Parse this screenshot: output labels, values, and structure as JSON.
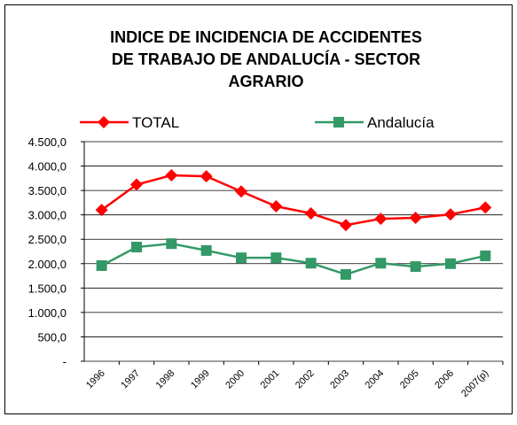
{
  "chart_data": {
    "type": "line",
    "title_lines": [
      "INDICE DE INCIDENCIA DE ACCIDENTES",
      "DE TRABAJO DE ANDALUCÍA - SECTOR",
      "AGRARIO"
    ],
    "categories": [
      "1996",
      "1997",
      "1998",
      "1999",
      "2000",
      "2001",
      "2002",
      "2003",
      "2004",
      "2005",
      "2006",
      "2007(p)"
    ],
    "series": [
      {
        "name": "TOTAL",
        "color": "#ff0000",
        "marker": "diamond",
        "values": [
          3100,
          3620,
          3810,
          3790,
          3480,
          3175,
          3030,
          2790,
          2920,
          2940,
          3010,
          3150
        ]
      },
      {
        "name": "Andalucía",
        "color": "#339966",
        "marker": "square",
        "values": [
          1960,
          2340,
          2410,
          2270,
          2120,
          2120,
          2010,
          1780,
          2010,
          1940,
          2000,
          2160
        ]
      }
    ],
    "ylim": [
      0,
      4500
    ],
    "yticks": [
      {
        "value": 0,
        "label": "-"
      },
      {
        "value": 500,
        "label": "500,0"
      },
      {
        "value": 1000,
        "label": "1.000,0"
      },
      {
        "value": 1500,
        "label": "1.500,0"
      },
      {
        "value": 2000,
        "label": "2.000,0"
      },
      {
        "value": 2500,
        "label": "2.500,0"
      },
      {
        "value": 3000,
        "label": "3.000,0"
      },
      {
        "value": 3500,
        "label": "3.500,0"
      },
      {
        "value": 4000,
        "label": "4.000,0"
      },
      {
        "value": 4500,
        "label": "4.500,0"
      }
    ],
    "grid": true
  }
}
